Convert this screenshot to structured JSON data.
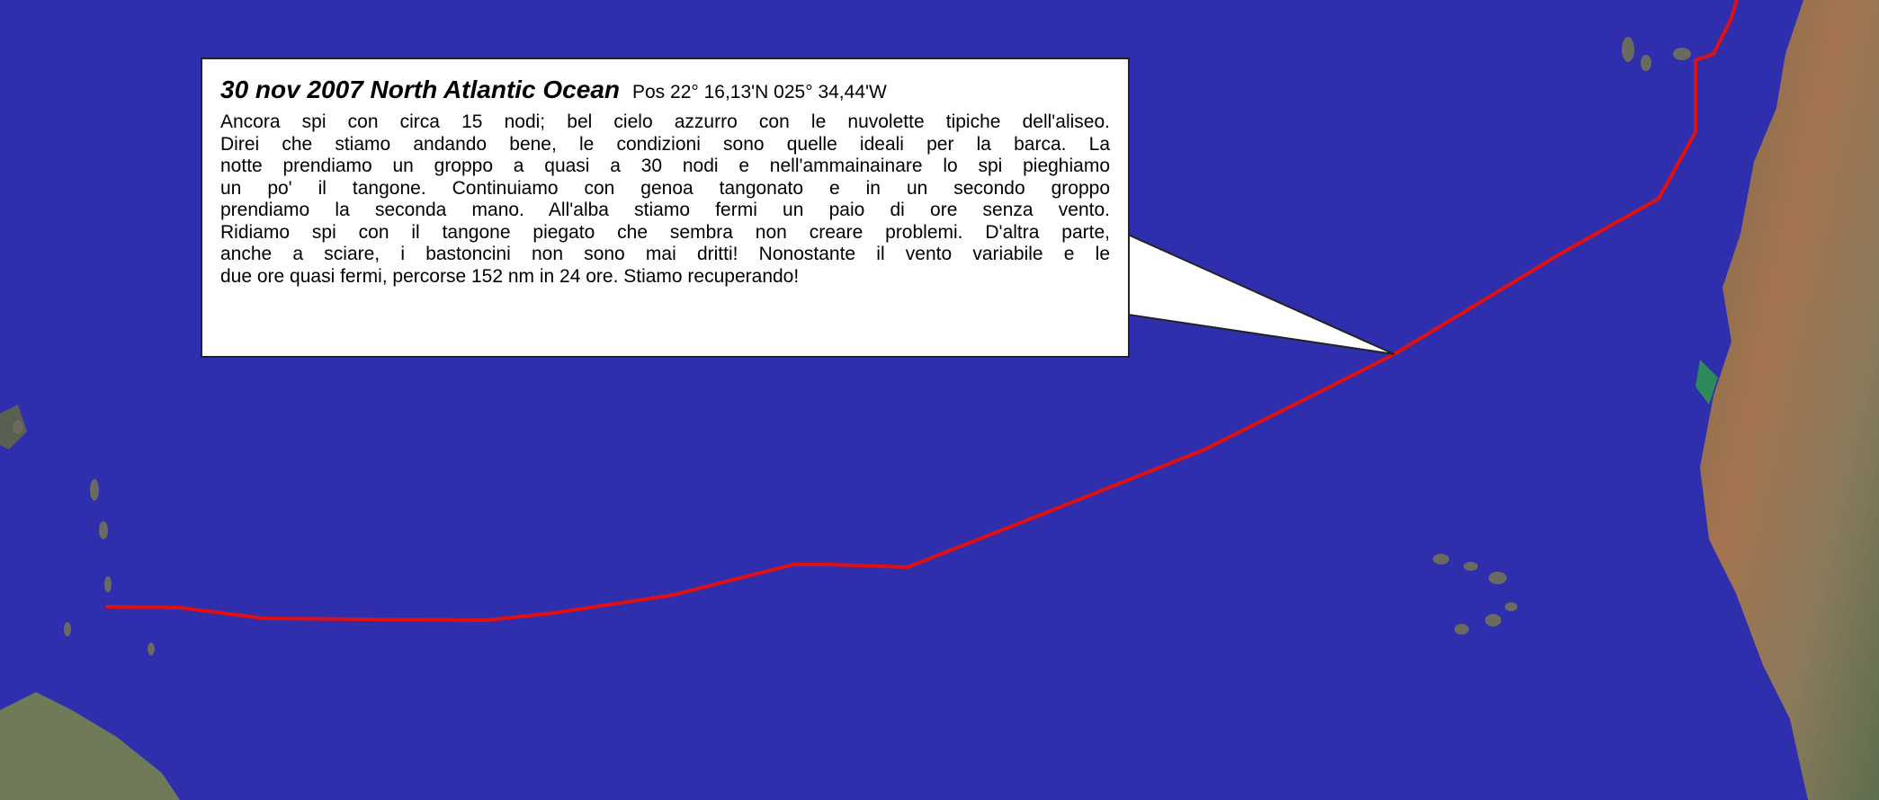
{
  "callout": {
    "title": "30 nov 2007 North Atlantic Ocean",
    "position": "Pos 22° 16,13'N  025° 34,44'W",
    "lines": [
      "Ancora spi con circa 15 nodi; bel cielo azzurro con le nuvolette tipiche dell'aliseo.",
      "Direi che stiamo andando bene, le condizioni sono quelle ideali per la barca. La",
      "notte prendiamo un groppo a quasi a 30 nodi e nell'ammainainare lo spi pieghiamo",
      "un po' il tangone. Continuiamo con genoa tangonato e in un secondo groppo",
      "prendiamo la seconda mano. All'alba stiamo fermi un paio di ore senza vento.",
      "Ridiamo spi con il tangone piegato che sembra non creare problemi. D'altra parte,",
      "anche a sciare, i bastoncini non sono mai dritti! Nonostante il vento variabile e le",
      "due ore quasi fermi, percorse 152 nm in 24 ore. Stiamo recuperando!"
    ]
  }
}
